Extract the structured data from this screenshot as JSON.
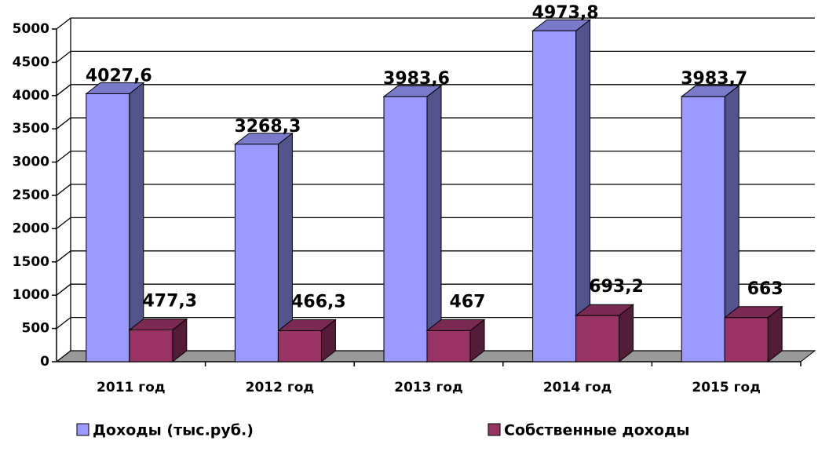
{
  "chart_data": {
    "type": "bar3d",
    "categories": [
      "2011 год",
      "2012 год",
      "2013 год",
      "2014 год",
      "2015 год"
    ],
    "series": [
      {
        "name": "Доходы (тыс.руб.)",
        "color": "#9999ff",
        "values": [
          4027.6,
          3268.3,
          3983.6,
          4973.8,
          3983.7
        ],
        "value_labels": [
          "4027,6",
          "3268,3",
          "3983,6",
          "4973,8",
          "3983,7"
        ]
      },
      {
        "name": "Собственные доходы",
        "color": "#993366",
        "values": [
          477.3,
          466.3,
          467,
          693.2,
          663
        ],
        "value_labels": [
          "477,3",
          "466,3",
          "467",
          "693,2",
          "663"
        ]
      }
    ],
    "ylim": [
      0,
      5000
    ],
    "yticks": [
      0,
      500,
      1000,
      1500,
      2000,
      2500,
      3000,
      3500,
      4000,
      4500,
      5000
    ],
    "grid": true
  }
}
